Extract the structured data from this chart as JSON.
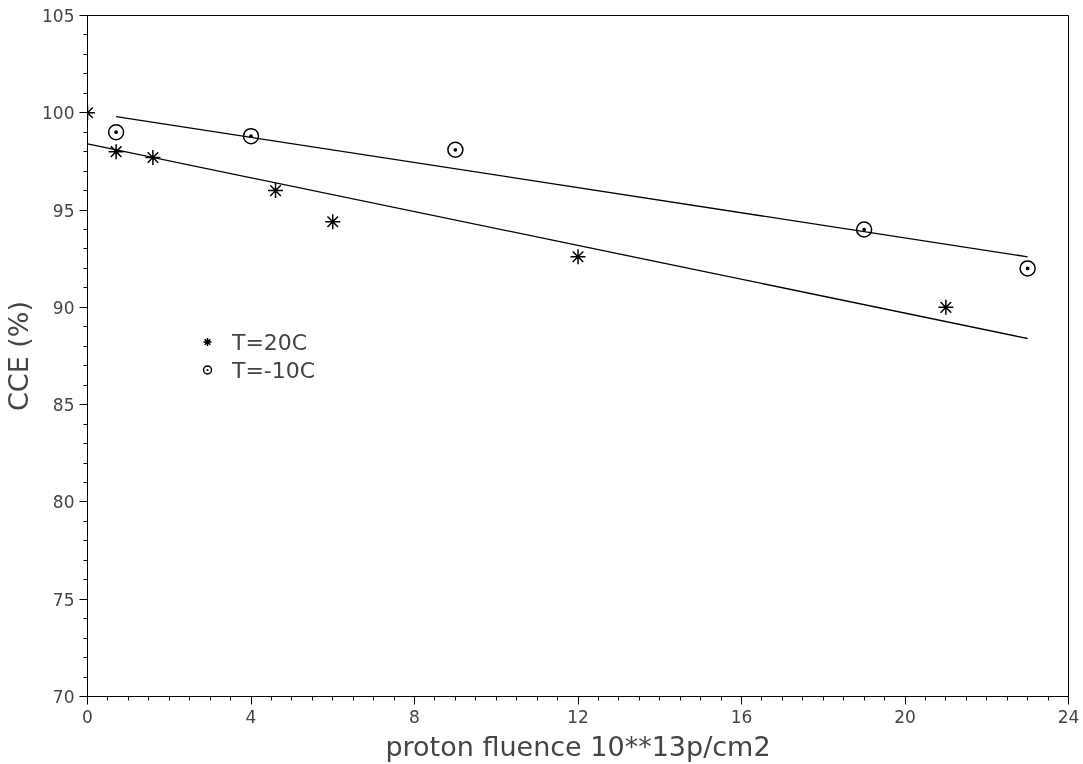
{
  "chart_data": {
    "type": "scatter",
    "xlabel": "proton fluence 10**13p/cm2",
    "ylabel": "CCE (%)",
    "xlim": [
      0,
      24
    ],
    "xticks": [
      0,
      4,
      8,
      12,
      16,
      20,
      24
    ],
    "ylim": [
      70,
      105
    ],
    "yticks": [
      70,
      75,
      80,
      85,
      90,
      95,
      100,
      105
    ],
    "grid": false,
    "legend": "left",
    "series": [
      {
        "name": "T=20C",
        "color": "#000000",
        "marker": "cross",
        "x": [
          0,
          0.7,
          1.6,
          4.6,
          6,
          12,
          21
        ],
        "values": [
          100,
          98.0,
          97.7,
          96.0,
          94.4,
          92.6,
          90.0
        ]
      },
      {
        "name": "T=-10C",
        "color": "#000000",
        "marker": "circle",
        "x": [
          0.7,
          4,
          9,
          19,
          23
        ],
        "values": [
          99.0,
          98.8,
          98.1,
          94.0,
          92.0
        ]
      },
      {
        "type": "line",
        "color": "#000000",
        "x": [
          0,
          23
        ],
        "values": [
          98.4,
          88.4
        ]
      },
      {
        "type": "line",
        "color": "#000000",
        "x": [
          0.7,
          23
        ],
        "values": [
          99.8,
          92.6
        ]
      }
    ]
  }
}
